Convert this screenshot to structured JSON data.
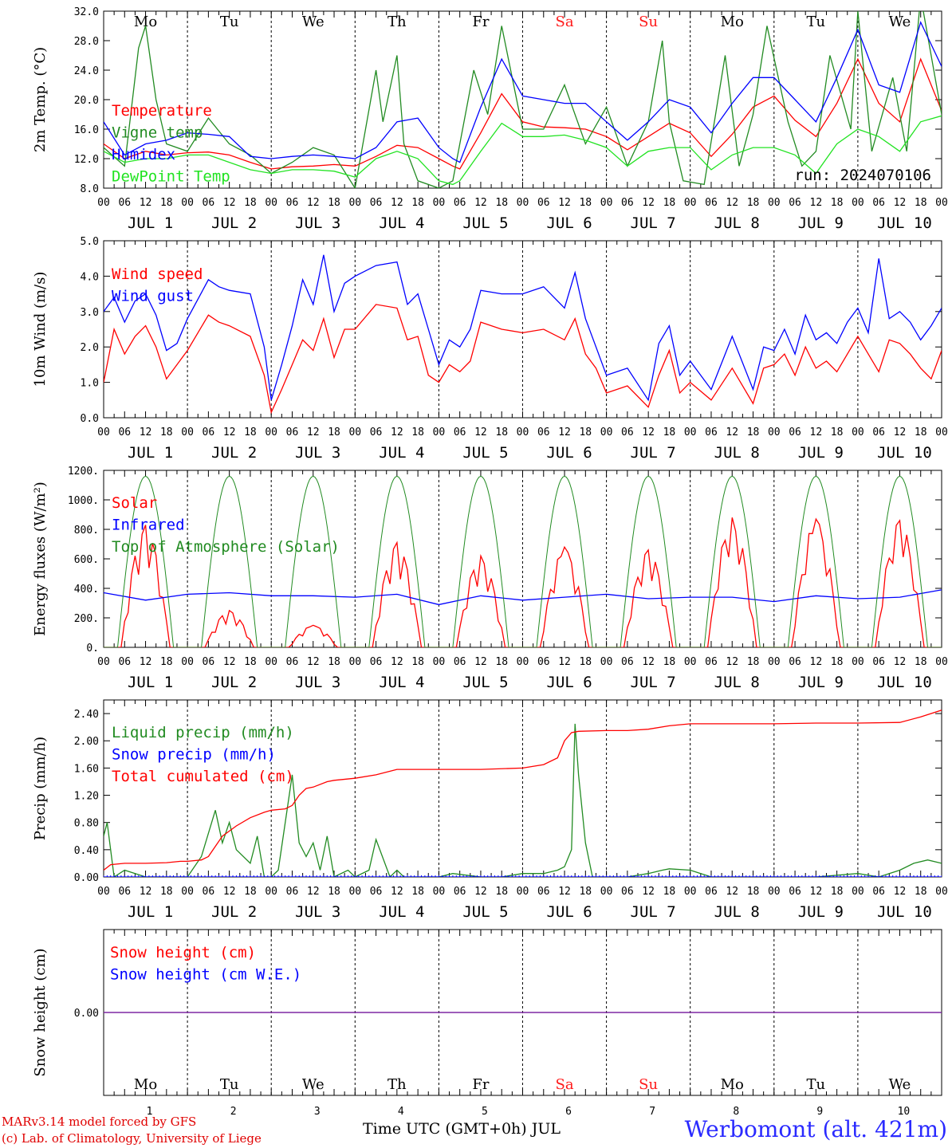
{
  "run_label": "run: 2024070106",
  "day_names": [
    "Mo",
    "Tu",
    "We",
    "Th",
    "Fr",
    "Sa",
    "Su",
    "Mo",
    "Tu",
    "We"
  ],
  "weekend_color": "#ff1a1a",
  "hour_ticks": [
    "00",
    "06",
    "12",
    "18"
  ],
  "date_labels": [
    "JUL  1",
    "JUL  2",
    "JUL  3",
    "JUL  4",
    "JUL  5",
    "JUL  6",
    "JUL  7",
    "JUL  8",
    "JUL  9",
    "JUL 10"
  ],
  "bottom_day_numbers": [
    "1",
    "2",
    "3",
    "4",
    "5",
    "6",
    "7",
    "8",
    "9",
    "10"
  ],
  "footer": {
    "model_line": "MARv3.14 model forced by GFS",
    "lab_line": "(c) Lab. of Climatology, University of Liege",
    "x_axis_label": "Time UTC (GMT+0h) JUL",
    "site": "Werbomont (alt. 421m)"
  },
  "chart_data": [
    {
      "type": "line",
      "ylabel": "2m Temp. (°C)",
      "ylim": [
        8,
        32
      ],
      "yticks": [
        "8.0",
        "12.0",
        "16.0",
        "20.0",
        "24.0",
        "28.0",
        "32.0"
      ],
      "x_unit": "hours since JUL 1 00 UTC",
      "xlim": [
        0,
        240
      ],
      "grid": "vertical dotted day separators",
      "series": [
        {
          "name": "Temperature",
          "color": "#ff0000",
          "x": [
            0,
            6,
            12,
            18,
            24,
            30,
            36,
            42,
            48,
            54,
            60,
            66,
            72,
            78,
            84,
            90,
            96,
            100,
            102,
            108,
            114,
            120,
            126,
            132,
            138,
            144,
            150,
            156,
            162,
            168,
            174,
            180,
            186,
            192,
            198,
            204,
            210,
            216,
            222,
            228,
            234,
            240
          ],
          "values": [
            14,
            12,
            13,
            12.5,
            12.8,
            12.9,
            12.5,
            11.5,
            10.6,
            10.9,
            11,
            11.2,
            11,
            12.3,
            13.8,
            13.5,
            12,
            11,
            10.6,
            15.5,
            20.8,
            17,
            16.3,
            16.2,
            16,
            15,
            13.2,
            15,
            16.8,
            15.5,
            12.3,
            15.3,
            19,
            20.5,
            17.2,
            15,
            19.5,
            25.5,
            19.5,
            17,
            25.5,
            18.5
          ]
        },
        {
          "name": "Vigne temp",
          "color": "#228b22",
          "x": [
            0,
            6,
            10,
            12,
            15,
            18,
            24,
            30,
            36,
            42,
            48,
            54,
            60,
            66,
            72,
            78,
            80,
            84,
            86,
            90,
            96,
            100,
            102,
            106,
            110,
            114,
            120,
            126,
            132,
            138,
            144,
            150,
            156,
            160,
            162,
            166,
            172,
            178,
            182,
            186,
            190,
            196,
            200,
            204,
            208,
            214,
            216,
            220,
            226,
            230,
            234,
            240
          ],
          "values": [
            13.5,
            11,
            27,
            30,
            20,
            14,
            13,
            17.5,
            14,
            12.5,
            10,
            11.5,
            13.5,
            12.5,
            8,
            24,
            17,
            26,
            14,
            9,
            8,
            9,
            14,
            24,
            18,
            30,
            16,
            16,
            22,
            14,
            19,
            11,
            17,
            28,
            17,
            9,
            8.5,
            26,
            11,
            18,
            30,
            17,
            11,
            13,
            26,
            16,
            32,
            13,
            23,
            13,
            34,
            18
          ]
        },
        {
          "name": "Humidex",
          "color": "#0000ff",
          "x": [
            0,
            6,
            12,
            18,
            24,
            30,
            36,
            42,
            48,
            54,
            60,
            66,
            72,
            78,
            84,
            90,
            96,
            100,
            102,
            108,
            114,
            120,
            126,
            132,
            138,
            144,
            150,
            156,
            162,
            168,
            174,
            180,
            186,
            192,
            198,
            204,
            210,
            216,
            222,
            228,
            234,
            240
          ],
          "values": [
            17,
            12.5,
            14,
            14.5,
            15.5,
            15.3,
            15,
            12.3,
            12,
            12.3,
            12.5,
            12.3,
            12,
            13.5,
            17,
            17.5,
            13.5,
            12,
            11.5,
            19,
            25.5,
            20.5,
            20,
            19.5,
            19.5,
            17,
            14.5,
            17,
            20,
            19,
            15.5,
            19.5,
            23,
            23,
            20,
            17,
            23,
            29.5,
            22,
            21,
            30.5,
            24.5
          ]
        },
        {
          "name": "DewPoint Temp",
          "color": "#22e322",
          "x": [
            0,
            6,
            12,
            18,
            24,
            30,
            36,
            42,
            48,
            54,
            60,
            66,
            72,
            78,
            84,
            90,
            96,
            100,
            102,
            108,
            114,
            120,
            126,
            132,
            138,
            144,
            150,
            156,
            162,
            168,
            174,
            180,
            186,
            192,
            198,
            204,
            210,
            216,
            222,
            228,
            234,
            240
          ],
          "values": [
            13,
            11.5,
            12,
            12,
            12.5,
            12.5,
            11.5,
            10.5,
            10,
            10.5,
            10.5,
            10.3,
            9.5,
            12,
            13,
            12,
            9,
            8.5,
            9,
            13,
            16.8,
            15,
            15,
            15.2,
            14.5,
            13.5,
            11,
            13,
            13.5,
            13.5,
            10.5,
            12.5,
            13.5,
            13.5,
            12.5,
            10,
            14,
            16,
            15,
            13,
            17,
            17.8
          ]
        }
      ]
    },
    {
      "type": "line",
      "ylabel": "10m Wind (m/s)",
      "ylim": [
        0,
        5
      ],
      "yticks": [
        "0.0",
        "1.0",
        "2.0",
        "3.0",
        "4.0",
        "5.0"
      ],
      "x_unit": "hours since JUL 1 00 UTC",
      "xlim": [
        0,
        240
      ],
      "series": [
        {
          "name": "Wind speed",
          "color": "#ff0000",
          "x": [
            0,
            3,
            6,
            9,
            12,
            15,
            18,
            21,
            24,
            30,
            33,
            36,
            42,
            46,
            48,
            51,
            54,
            57,
            60,
            63,
            66,
            69,
            72,
            78,
            84,
            87,
            90,
            93,
            96,
            99,
            102,
            105,
            108,
            114,
            120,
            126,
            132,
            135,
            138,
            141,
            144,
            150,
            156,
            159,
            162,
            165,
            168,
            174,
            180,
            186,
            189,
            192,
            195,
            198,
            201,
            204,
            207,
            210,
            213,
            216,
            219,
            222,
            225,
            228,
            231,
            234,
            237,
            240
          ],
          "values": [
            1,
            2.5,
            1.8,
            2.3,
            2.6,
            2,
            1.1,
            1.5,
            1.9,
            2.9,
            2.7,
            2.6,
            2.3,
            1.2,
            0.15,
            0.8,
            1.5,
            2.2,
            1.9,
            2.8,
            1.7,
            2.5,
            2.5,
            3.2,
            3.1,
            2.2,
            2.3,
            1.2,
            1,
            1.5,
            1.3,
            1.6,
            2.7,
            2.5,
            2.4,
            2.5,
            2.2,
            2.8,
            1.8,
            1.4,
            0.7,
            0.9,
            0.3,
            1.2,
            1.9,
            0.7,
            1,
            0.5,
            1.4,
            0.4,
            1.4,
            1.5,
            1.8,
            1.2,
            2,
            1.4,
            1.6,
            1.3,
            1.8,
            2.3,
            1.8,
            1.3,
            2.2,
            2.1,
            1.8,
            1.4,
            1.1,
            1.9
          ]
        },
        {
          "name": "Wind gust",
          "color": "#0000ff",
          "x": [
            0,
            3,
            6,
            9,
            12,
            15,
            18,
            21,
            24,
            30,
            33,
            36,
            42,
            46,
            48,
            51,
            54,
            57,
            60,
            63,
            66,
            69,
            72,
            78,
            84,
            87,
            90,
            93,
            96,
            99,
            102,
            105,
            108,
            114,
            120,
            126,
            132,
            135,
            138,
            141,
            144,
            150,
            156,
            159,
            162,
            165,
            168,
            174,
            180,
            186,
            189,
            192,
            195,
            198,
            201,
            204,
            207,
            210,
            213,
            216,
            219,
            222,
            225,
            228,
            231,
            234,
            237,
            240
          ],
          "values": [
            3,
            3.4,
            2.7,
            3.3,
            3.5,
            2.9,
            1.9,
            2.1,
            2.8,
            3.9,
            3.7,
            3.6,
            3.5,
            2,
            0.5,
            1.5,
            2.6,
            3.9,
            3.2,
            4.6,
            3,
            3.8,
            4,
            4.3,
            4.4,
            3.2,
            3.5,
            2.5,
            1.5,
            2.2,
            2,
            2.5,
            3.6,
            3.5,
            3.5,
            3.7,
            3.1,
            4.1,
            2.8,
            2,
            1.2,
            1.4,
            0.5,
            2.1,
            2.6,
            1.2,
            1.6,
            0.8,
            2.3,
            0.8,
            2,
            1.9,
            2.5,
            1.8,
            2.9,
            2.2,
            2.4,
            2.1,
            2.7,
            3.1,
            2.4,
            4.5,
            2.8,
            3,
            2.7,
            2.2,
            2.6,
            3.1
          ]
        }
      ]
    },
    {
      "type": "line",
      "ylabel": "Energy fluxes (W/m²)",
      "ylim": [
        0,
        1200
      ],
      "yticks": [
        "0.",
        "200.",
        "400.",
        "600.",
        "800.",
        "1000.",
        "1200."
      ],
      "x_unit": "hours since JUL 1 00 UTC",
      "xlim": [
        0,
        240
      ],
      "series": [
        {
          "name": "Solar",
          "color": "#ff0000",
          "daily_peaks": [
            830,
            250,
            150,
            710,
            620,
            680,
            660,
            880,
            870,
            860
          ]
        },
        {
          "name": "Infrared",
          "color": "#0000ff",
          "x": [
            0,
            12,
            24,
            36,
            48,
            60,
            72,
            84,
            96,
            108,
            120,
            132,
            144,
            156,
            168,
            180,
            192,
            204,
            216,
            228,
            240
          ],
          "values": [
            370,
            320,
            360,
            370,
            350,
            350,
            340,
            360,
            290,
            350,
            320,
            340,
            360,
            330,
            340,
            340,
            310,
            350,
            330,
            340,
            390
          ]
        },
        {
          "name": "Top of Atmosphere (Solar)",
          "color": "#228b22",
          "daily_peak": 1160,
          "sunrise_hour": 4,
          "sunset_hour": 20
        }
      ]
    },
    {
      "type": "line",
      "ylabel": "Precip (mm/h)",
      "ylim": [
        0,
        2.6
      ],
      "yticks": [
        "0.00",
        "0.40",
        "0.80",
        "1.20",
        "1.60",
        "2.00",
        "2.40"
      ],
      "x_unit": "hours since JUL 1 00 UTC",
      "xlim": [
        0,
        240
      ],
      "series": [
        {
          "name": "Liquid precip (mm/h)",
          "color": "#228b22",
          "x": [
            0,
            1,
            3,
            6,
            12,
            18,
            24,
            28,
            32,
            34,
            36,
            38,
            42,
            44,
            46,
            48,
            50,
            54,
            56,
            58,
            60,
            62,
            64,
            66,
            70,
            72,
            76,
            78,
            82,
            84,
            86,
            88,
            90,
            92,
            96,
            100,
            108,
            114,
            120,
            126,
            130,
            132,
            134,
            135,
            136,
            138,
            140,
            144,
            148,
            150,
            156,
            160,
            162,
            168,
            174,
            180,
            186,
            198,
            204,
            216,
            222,
            228,
            232,
            236,
            240
          ],
          "values": [
            0.6,
            0.8,
            0,
            0.1,
            0,
            0,
            0,
            0.3,
            0.98,
            0.5,
            0.8,
            0.4,
            0.2,
            0.6,
            0,
            0,
            0.1,
            1.5,
            0.5,
            0.3,
            0.5,
            0.1,
            0.6,
            0,
            0.1,
            0,
            0.1,
            0.55,
            0,
            0.1,
            0,
            0,
            0,
            0,
            0,
            0.05,
            0,
            0,
            0.05,
            0.05,
            0.1,
            0.15,
            0.4,
            2.25,
            1.5,
            0.5,
            0,
            0,
            0,
            0,
            0.05,
            0.1,
            0.12,
            0.1,
            0,
            0,
            0,
            0,
            0,
            0.05,
            0,
            0.1,
            0.2,
            0.25,
            0.2
          ]
        },
        {
          "name": "Snow precip (mm/h)",
          "color": "#0000ff",
          "values_constant": 0
        },
        {
          "name": "Total cumulated (cm)",
          "color": "#ff0000",
          "x": [
            0,
            2,
            6,
            12,
            18,
            22,
            24,
            28,
            30,
            32,
            34,
            38,
            42,
            46,
            48,
            52,
            54,
            56,
            58,
            60,
            64,
            66,
            72,
            78,
            84,
            90,
            96,
            108,
            120,
            126,
            130,
            132,
            134,
            136,
            144,
            150,
            156,
            162,
            168,
            174,
            180,
            192,
            204,
            216,
            228,
            234,
            240
          ],
          "values": [
            0.1,
            0.18,
            0.2,
            0.2,
            0.21,
            0.23,
            0.23,
            0.25,
            0.3,
            0.45,
            0.6,
            0.75,
            0.87,
            0.95,
            0.98,
            1.0,
            1.05,
            1.2,
            1.3,
            1.32,
            1.4,
            1.42,
            1.45,
            1.5,
            1.58,
            1.58,
            1.58,
            1.58,
            1.6,
            1.65,
            1.75,
            2.0,
            2.12,
            2.14,
            2.15,
            2.15,
            2.17,
            2.22,
            2.25,
            2.25,
            2.25,
            2.25,
            2.26,
            2.26,
            2.27,
            2.35,
            2.45
          ]
        }
      ]
    },
    {
      "type": "line",
      "ylabel": "Snow height (cm)",
      "yticks": [
        "0.00"
      ],
      "x_unit": "hours since JUL 1 00 UTC",
      "xlim": [
        0,
        240
      ],
      "series": [
        {
          "name": "Snow height (cm)",
          "color": "#ff0000",
          "values_constant": 0
        },
        {
          "name": "Snow height (cm W.E.)",
          "color": "#0000ff",
          "values_constant": 0
        }
      ]
    }
  ]
}
